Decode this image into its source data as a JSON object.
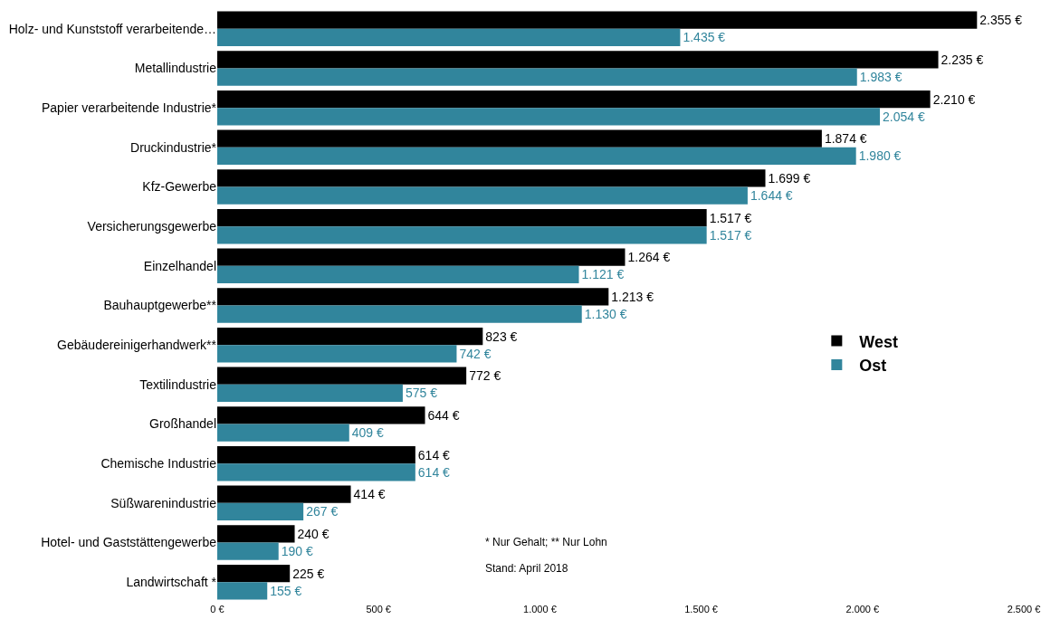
{
  "chart_data": {
    "type": "bar",
    "orientation": "horizontal",
    "categories": [
      "Holz- und Kunststoff verarbeitende…",
      "Metallindustrie",
      "Papier verarbeitende Industrie*",
      "Druckindustrie*",
      "Kfz-Gewerbe",
      "Versicherungsgewerbe",
      "Einzelhandel",
      "Bauhauptgewerbe**",
      "Gebäudereinigerhandwerk**",
      "Textilindustrie",
      "Großhandel",
      "Chemische Industrie",
      "Süßwarenindustrie",
      "Hotel- und Gaststättengewerbe",
      "Landwirtschaft *"
    ],
    "series": [
      {
        "name": "West",
        "color": "#000000",
        "values": [
          2355,
          2235,
          2210,
          1874,
          1699,
          1517,
          1264,
          1213,
          823,
          772,
          644,
          614,
          414,
          240,
          225
        ],
        "value_labels": [
          "2.355 €",
          "2.235 €",
          "2.210 €",
          "1.874 €",
          "1.699 €",
          "1.517 €",
          "1.264 €",
          "1.213 €",
          "823 €",
          "772 €",
          "644 €",
          "614 €",
          "414 €",
          "240 €",
          "225 €"
        ]
      },
      {
        "name": "Ost",
        "color": "#31859c",
        "values": [
          1435,
          1983,
          2054,
          1980,
          1644,
          1517,
          1121,
          1130,
          742,
          575,
          409,
          614,
          267,
          190,
          155
        ],
        "value_labels": [
          "1.435 €",
          "1.983 €",
          "2.054 €",
          "1.980 €",
          "1.644 €",
          "1.517 €",
          "1.121 €",
          "1.130 €",
          "742 €",
          "575 €",
          "409 €",
          "614 €",
          "267 €",
          "190 €",
          "155 €"
        ]
      }
    ],
    "xlim": [
      0,
      2500
    ],
    "xticks": [
      {
        "value": 0,
        "label": "0 €"
      },
      {
        "value": 500,
        "label": "500 €"
      },
      {
        "value": 1000,
        "label": "1.000 €"
      },
      {
        "value": 1500,
        "label": "1.500 €"
      },
      {
        "value": 2000,
        "label": "2.000 €"
      },
      {
        "value": 2500,
        "label": "2.500 €"
      }
    ],
    "grid": false,
    "legend": "right",
    "annotations": [
      "* Nur Gehalt; ** Nur Lohn",
      "Stand: April 2018"
    ]
  }
}
